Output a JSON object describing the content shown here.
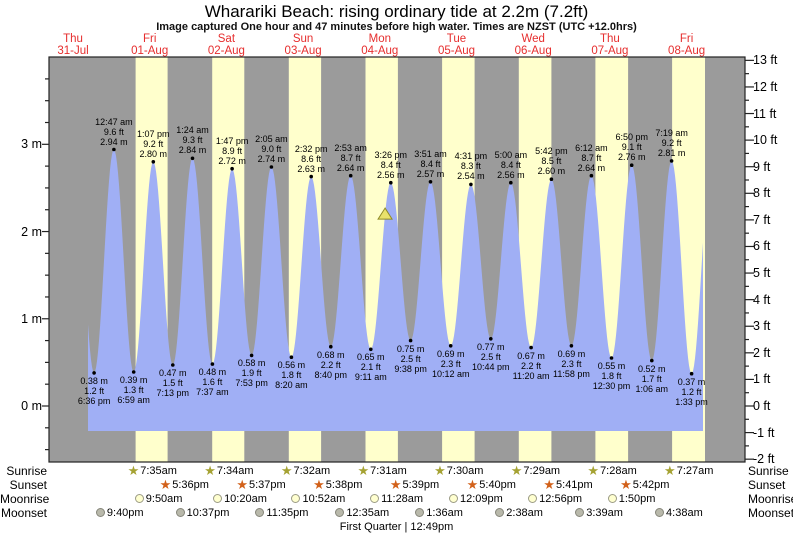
{
  "title": "Wharariki Beach: rising  ordinary tide at 2.2m (7.2ft)",
  "subtitle": "Image captured One hour and 47 minutes before high water. Times are NZST (UTC +12.0hrs)",
  "footer": "First Quarter | 12:49pm",
  "colors": {
    "plot_background": "#9b9b9b",
    "daylight_band": "#ffffcc",
    "tide_fill": "#a0aff5",
    "day_label_red": "#e62e2e",
    "sunrise_star": "#a5a233",
    "sunset_star": "#d2611a",
    "moonrise_circle": "#ffffd0",
    "moonset_circle": "#b9b9ab",
    "marker_fill": "#e9e26b",
    "marker_border": "#8f8a26"
  },
  "chart_data": {
    "type": "area",
    "title": "Wharariki Beach: rising  ordinary tide at 2.2m (7.2ft)",
    "days": [
      {
        "name": "Thu",
        "date": "31-Jul"
      },
      {
        "name": "Fri",
        "date": "01-Aug"
      },
      {
        "name": "Sat",
        "date": "02-Aug"
      },
      {
        "name": "Sun",
        "date": "03-Aug"
      },
      {
        "name": "Mon",
        "date": "04-Aug"
      },
      {
        "name": "Tue",
        "date": "05-Aug"
      },
      {
        "name": "Wed",
        "date": "06-Aug"
      },
      {
        "name": "Thu",
        "date": "07-Aug"
      },
      {
        "name": "Fri",
        "date": "08-Aug"
      }
    ],
    "y_axis_left": {
      "unit": "m",
      "tick_labels": [
        "0 m",
        "1 m",
        "2 m",
        "3 m"
      ]
    },
    "y_axis_right": {
      "unit": "ft",
      "tick_labels": [
        "-2 ft",
        "-1 ft",
        "0 ft",
        "1 ft",
        "2 ft",
        "3 ft",
        "4 ft",
        "5 ft",
        "6 ft",
        "7 ft",
        "8 ft",
        "9 ft",
        "10 ft",
        "11 ft",
        "12 ft",
        "13 ft"
      ]
    },
    "marker": {
      "day": 4,
      "time": "1:39pm",
      "value_m": 2.2,
      "shape": "triangle-up"
    },
    "extremes": [
      {
        "type": "low",
        "day": 0,
        "time": "6:36 pm",
        "m": "0.38 m",
        "ft": "1.2 ft",
        "value_m": 0.38
      },
      {
        "type": "high",
        "day": 1,
        "time": "12:47 am",
        "ft": "9.6 ft",
        "m": "2.94 m",
        "value_m": 2.94
      },
      {
        "type": "low",
        "day": 1,
        "time": "6:59 am",
        "m": "0.39 m",
        "ft": "1.3 ft",
        "value_m": 0.39
      },
      {
        "type": "high",
        "day": 1,
        "time": "1:07 pm",
        "ft": "9.2 ft",
        "m": "2.80 m",
        "value_m": 2.8
      },
      {
        "type": "low",
        "day": 1,
        "time": "7:13 pm",
        "m": "0.47 m",
        "ft": "1.5 ft",
        "value_m": 0.47
      },
      {
        "type": "high",
        "day": 2,
        "time": "1:24 am",
        "ft": "9.3 ft",
        "m": "2.84 m",
        "value_m": 2.84
      },
      {
        "type": "low",
        "day": 2,
        "time": "7:37 am",
        "m": "0.48 m",
        "ft": "1.6 ft",
        "value_m": 0.48
      },
      {
        "type": "high",
        "day": 2,
        "time": "1:47 pm",
        "ft": "8.9 ft",
        "m": "2.72 m",
        "value_m": 2.72
      },
      {
        "type": "low",
        "day": 2,
        "time": "7:53 pm",
        "m": "0.58 m",
        "ft": "1.9 ft",
        "value_m": 0.58
      },
      {
        "type": "high",
        "day": 3,
        "time": "2:05 am",
        "ft": "9.0 ft",
        "m": "2.74 m",
        "value_m": 2.74
      },
      {
        "type": "low",
        "day": 3,
        "time": "8:20 am",
        "m": "0.56 m",
        "ft": "1.8 ft",
        "value_m": 0.56
      },
      {
        "type": "high",
        "day": 3,
        "time": "2:32 pm",
        "ft": "8.6 ft",
        "m": "2.63 m",
        "value_m": 2.63
      },
      {
        "type": "low",
        "day": 3,
        "time": "8:40 pm",
        "m": "0.68 m",
        "ft": "2.2 ft",
        "value_m": 0.68
      },
      {
        "type": "high",
        "day": 4,
        "time": "2:53 am",
        "ft": "8.7 ft",
        "m": "2.64 m",
        "value_m": 2.64
      },
      {
        "type": "low",
        "day": 4,
        "time": "9:11 am",
        "m": "0.65 m",
        "ft": "2.1 ft",
        "value_m": 0.65
      },
      {
        "type": "high",
        "day": 4,
        "time": "3:26 pm",
        "ft": "8.4 ft",
        "m": "2.56 m",
        "value_m": 2.56
      },
      {
        "type": "low",
        "day": 4,
        "time": "9:38 pm",
        "m": "0.75 m",
        "ft": "2.5 ft",
        "value_m": 0.75
      },
      {
        "type": "high",
        "day": 5,
        "time": "3:51 am",
        "ft": "8.4 ft",
        "m": "2.57 m",
        "value_m": 2.57
      },
      {
        "type": "low",
        "day": 5,
        "time": "10:12 am",
        "m": "0.69 m",
        "ft": "2.3 ft",
        "value_m": 0.69
      },
      {
        "type": "high",
        "day": 5,
        "time": "4:31 pm",
        "ft": "8.3 ft",
        "m": "2.54 m",
        "value_m": 2.54
      },
      {
        "type": "low",
        "day": 5,
        "time": "10:44 pm",
        "m": "0.77 m",
        "ft": "2.5 ft",
        "value_m": 0.77
      },
      {
        "type": "high",
        "day": 6,
        "time": "5:00 am",
        "ft": "8.4 ft",
        "m": "2.56 m",
        "value_m": 2.56
      },
      {
        "type": "low",
        "day": 6,
        "time": "11:20 am",
        "m": "0.67 m",
        "ft": "2.2 ft",
        "value_m": 0.67
      },
      {
        "type": "high",
        "day": 6,
        "time": "5:42 pm",
        "ft": "8.5 ft",
        "m": "2.60 m",
        "value_m": 2.6
      },
      {
        "type": "low",
        "day": 6,
        "time": "11:58 pm",
        "m": "0.69 m",
        "ft": "2.3 ft",
        "value_m": 0.69
      },
      {
        "type": "high",
        "day": 7,
        "time": "6:12 am",
        "ft": "8.7 ft",
        "m": "2.64 m",
        "value_m": 2.64
      },
      {
        "type": "low",
        "day": 7,
        "time": "12:30 pm",
        "m": "0.55 m",
        "ft": "1.8 ft",
        "value_m": 0.55
      },
      {
        "type": "high",
        "day": 7,
        "time": "6:50 pm",
        "ft": "9.1 ft",
        "m": "2.76 m",
        "value_m": 2.76
      },
      {
        "type": "low",
        "day": 8,
        "time": "1:06 am",
        "m": "0.52 m",
        "ft": "1.7 ft",
        "value_m": 0.52
      },
      {
        "type": "high",
        "day": 8,
        "time": "7:19 am",
        "ft": "9.2 ft",
        "m": "2.81 m",
        "value_m": 2.81
      },
      {
        "type": "low",
        "day": 8,
        "time": "1:33 pm",
        "m": "0.37 m",
        "ft": "1.2 ft",
        "value_m": 0.37
      }
    ]
  },
  "astro": {
    "sunrise": {
      "label": "Sunrise",
      "events": [
        {
          "day": 1,
          "time": "7:35am"
        },
        {
          "day": 2,
          "time": "7:34am"
        },
        {
          "day": 3,
          "time": "7:32am"
        },
        {
          "day": 4,
          "time": "7:31am"
        },
        {
          "day": 5,
          "time": "7:30am"
        },
        {
          "day": 6,
          "time": "7:29am"
        },
        {
          "day": 7,
          "time": "7:28am"
        },
        {
          "day": 8,
          "time": "7:27am"
        }
      ]
    },
    "sunset": {
      "label": "Sunset",
      "events": [
        {
          "day": 1,
          "time": "5:36pm"
        },
        {
          "day": 2,
          "time": "5:37pm"
        },
        {
          "day": 3,
          "time": "5:38pm"
        },
        {
          "day": 4,
          "time": "5:39pm"
        },
        {
          "day": 5,
          "time": "5:40pm"
        },
        {
          "day": 6,
          "time": "5:41pm"
        },
        {
          "day": 7,
          "time": "5:42pm"
        }
      ]
    },
    "moonrise": {
      "label": "Moonrise",
      "events": [
        {
          "day": 1,
          "time": "9:50am"
        },
        {
          "day": 2,
          "time": "10:20am"
        },
        {
          "day": 3,
          "time": "10:52am"
        },
        {
          "day": 4,
          "time": "11:28am"
        },
        {
          "day": 5,
          "time": "12:09pm"
        },
        {
          "day": 6,
          "time": "12:56pm"
        },
        {
          "day": 7,
          "time": "1:50pm"
        }
      ]
    },
    "moonset": {
      "label": "Moonset",
      "events": [
        {
          "day": 0,
          "time": "9:40pm"
        },
        {
          "day": 1,
          "time": "10:37pm"
        },
        {
          "day": 2,
          "time": "11:35pm"
        },
        {
          "day": 4,
          "time": "12:35am"
        },
        {
          "day": 5,
          "time": "1:36am"
        },
        {
          "day": 6,
          "time": "2:38am"
        },
        {
          "day": 7,
          "time": "3:39am"
        },
        {
          "day": 8,
          "time": "4:38am"
        }
      ]
    }
  }
}
